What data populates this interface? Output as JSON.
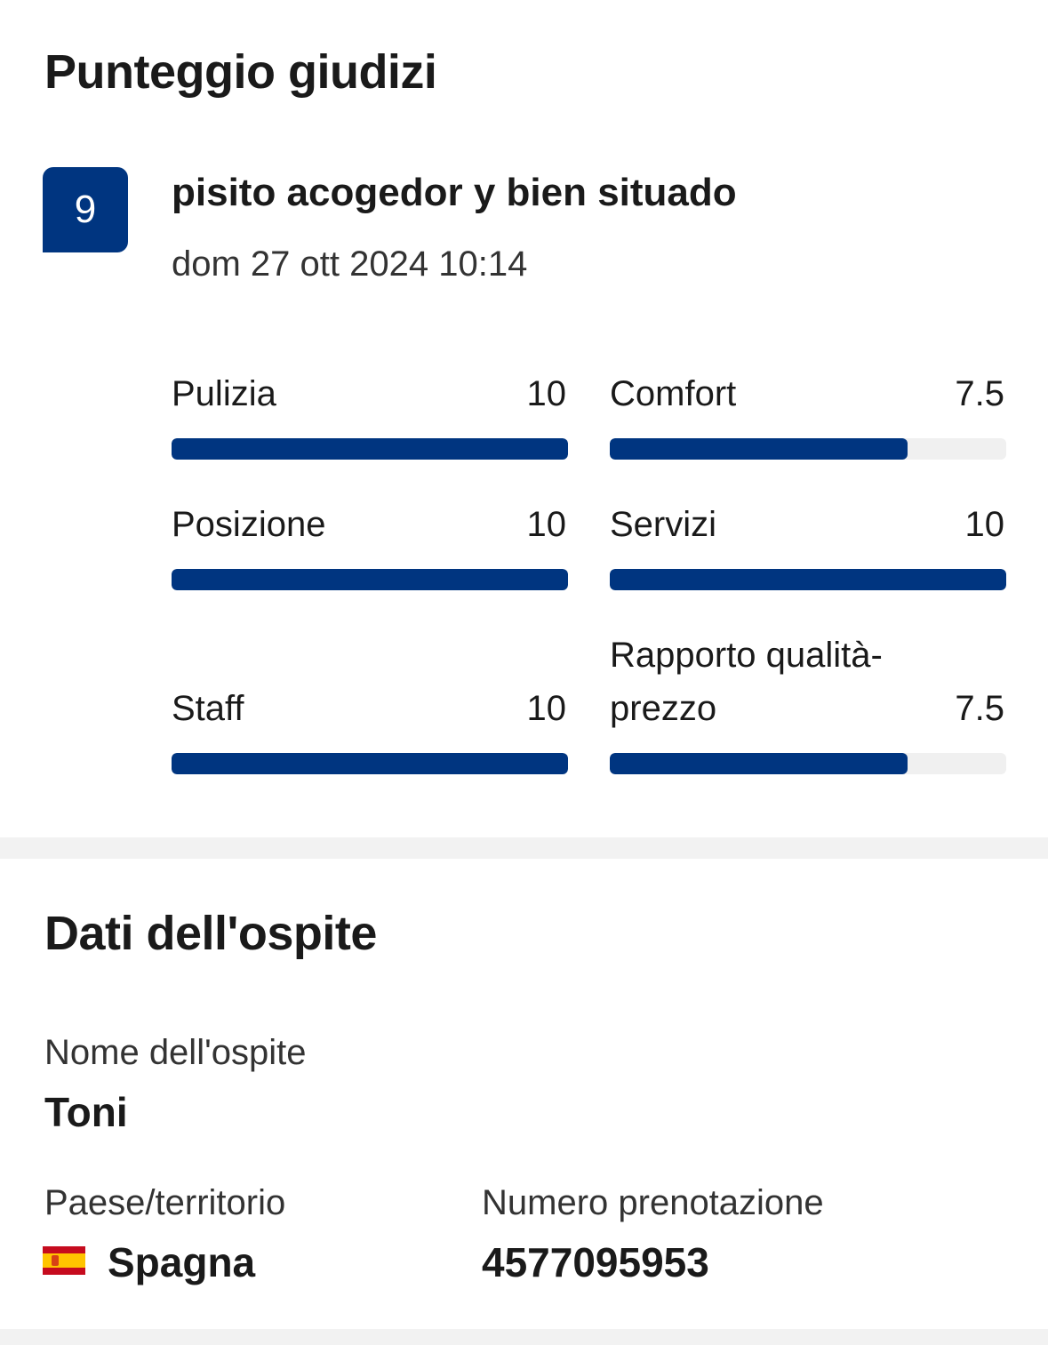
{
  "reviews": {
    "section_title": "Punteggio giudizi",
    "score": "9",
    "review_title": "pisito acogedor y bien situado",
    "date": "dom 27 ott 2024 10:14",
    "categories": [
      {
        "label": "Pulizia",
        "value": "10",
        "score": 10,
        "max": 10
      },
      {
        "label": "Comfort",
        "value": "7.5",
        "score": 7.5,
        "max": 10
      },
      {
        "label": "Posizione",
        "value": "10",
        "score": 10,
        "max": 10
      },
      {
        "label": "Servizi",
        "value": "10",
        "score": 10,
        "max": 10
      },
      {
        "label": "Staff",
        "value": "10",
        "score": 10,
        "max": 10
      },
      {
        "label": "Rapporto qualità-prezzo",
        "value": "7.5",
        "score": 7.5,
        "max": 10
      }
    ],
    "bar_color": "#003580"
  },
  "guest": {
    "section_title": "Dati dell'ospite",
    "name_label": "Nome dell'ospite",
    "name": "Toni",
    "country_label": "Paese/territorio",
    "country": "Spagna",
    "country_flag_icon": "spain-flag-icon",
    "booking_label": "Numero prenotazione",
    "booking_number": "4577095953"
  }
}
